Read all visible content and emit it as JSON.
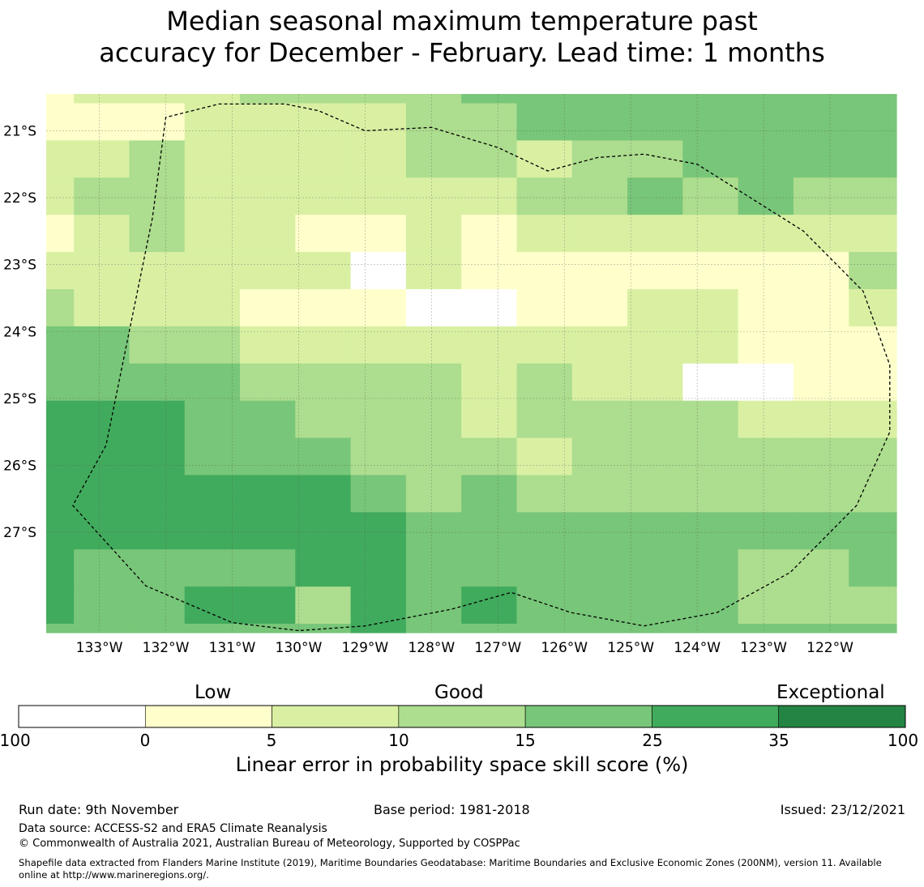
{
  "title_line1": "Median seasonal maximum temperature past",
  "title_line2": "accuracy for December - February. Lead time: 1 months",
  "colors": {
    "bins": [
      "#ffffff",
      "#ffffcc",
      "#d9f0a3",
      "#addd8e",
      "#78c679",
      "#41ab5d",
      "#238443"
    ],
    "outline": "#000000",
    "grid": "#555555"
  },
  "chart_data": {
    "type": "heatmap",
    "title": "Median seasonal maximum temperature past accuracy for December - February. Lead time: 1 months",
    "x_ticks": [
      "133°W",
      "132°W",
      "131°W",
      "130°W",
      "129°W",
      "128°W",
      "127°W",
      "126°W",
      "125°W",
      "124°W",
      "123°W",
      "122°W"
    ],
    "y_ticks": [
      "21°S",
      "22°S",
      "23°S",
      "24°S",
      "25°S",
      "26°S",
      "27°S"
    ],
    "x_tick_values": [
      -133,
      -132,
      -131,
      -130,
      -129,
      -128,
      -127,
      -126,
      -125,
      -124,
      -123,
      -122
    ],
    "y_tick_values": [
      -21,
      -22,
      -23,
      -24,
      -25,
      -26,
      -27
    ],
    "xlim": [
      -133.8,
      -121.0
    ],
    "ylim": [
      -28.5,
      -20.45
    ],
    "cell_deg_lon": 0.8333,
    "cell_deg_lat": 0.5556,
    "grid_origin": {
      "lon": -133.8,
      "lat": -20.45
    },
    "grid_columns": [
      0.5,
      1,
      1,
      1,
      1,
      1,
      1,
      1,
      1,
      1,
      1,
      1,
      1,
      1,
      1,
      1
    ],
    "grid_rows": [
      0.25,
      1,
      1,
      1,
      1,
      1,
      1,
      1,
      1,
      1,
      1,
      1,
      1,
      1,
      1,
      0.3
    ],
    "grid_category_index": [
      [
        1,
        2,
        2,
        2,
        3,
        3,
        3,
        3,
        4,
        4,
        4,
        4,
        4,
        4,
        4,
        4
      ],
      [
        1,
        1,
        1,
        2,
        2,
        2,
        2,
        3,
        3,
        4,
        4,
        4,
        4,
        4,
        4,
        4
      ],
      [
        2,
        2,
        3,
        2,
        2,
        2,
        2,
        3,
        3,
        2,
        3,
        3,
        4,
        4,
        4,
        4
      ],
      [
        2,
        3,
        3,
        2,
        2,
        2,
        2,
        2,
        2,
        3,
        3,
        4,
        3,
        4,
        3,
        3
      ],
      [
        1,
        2,
        3,
        2,
        2,
        1,
        1,
        2,
        1,
        2,
        2,
        2,
        2,
        2,
        2,
        2
      ],
      [
        2,
        2,
        2,
        2,
        2,
        2,
        0,
        2,
        1,
        1,
        1,
        1,
        1,
        1,
        1,
        3
      ],
      [
        3,
        2,
        2,
        2,
        1,
        1,
        1,
        0,
        0,
        1,
        1,
        2,
        2,
        1,
        1,
        2
      ],
      [
        4,
        4,
        3,
        3,
        2,
        2,
        2,
        2,
        2,
        2,
        2,
        2,
        2,
        1,
        1,
        1
      ],
      [
        4,
        4,
        4,
        4,
        3,
        3,
        3,
        3,
        2,
        3,
        2,
        2,
        0,
        0,
        1,
        1
      ],
      [
        5,
        5,
        5,
        4,
        4,
        3,
        3,
        3,
        2,
        3,
        3,
        3,
        3,
        2,
        2,
        2
      ],
      [
        5,
        5,
        5,
        4,
        4,
        4,
        3,
        3,
        3,
        2,
        3,
        3,
        3,
        3,
        3,
        3
      ],
      [
        5,
        5,
        5,
        5,
        5,
        5,
        4,
        3,
        4,
        3,
        3,
        3,
        3,
        3,
        3,
        3
      ],
      [
        5,
        5,
        5,
        5,
        5,
        5,
        5,
        4,
        4,
        4,
        4,
        4,
        4,
        4,
        4,
        4
      ],
      [
        5,
        4,
        4,
        4,
        4,
        5,
        5,
        4,
        4,
        4,
        4,
        4,
        4,
        3,
        3,
        4
      ],
      [
        5,
        4,
        4,
        5,
        5,
        3,
        5,
        4,
        5,
        4,
        4,
        4,
        4,
        3,
        3,
        3
      ],
      [
        4,
        4,
        4,
        4,
        4,
        4,
        5,
        4,
        4,
        4,
        4,
        4,
        4,
        4,
        4,
        4
      ]
    ],
    "outline_lonlat": [
      [
        -130.0,
        -28.47
      ],
      [
        -131.0,
        -28.35
      ],
      [
        -132.3,
        -27.8
      ],
      [
        -133.4,
        -26.6
      ],
      [
        -132.9,
        -25.7
      ],
      [
        -132.2,
        -22.3
      ],
      [
        -132.0,
        -20.8
      ],
      [
        -131.2,
        -20.6
      ],
      [
        -130.2,
        -20.6
      ],
      [
        -129.7,
        -20.7
      ],
      [
        -129.0,
        -21.0
      ],
      [
        -128.0,
        -20.95
      ],
      [
        -127.0,
        -21.25
      ],
      [
        -126.25,
        -21.6
      ],
      [
        -125.5,
        -21.4
      ],
      [
        -124.8,
        -21.35
      ],
      [
        -124.0,
        -21.5
      ],
      [
        -123.2,
        -22.0
      ],
      [
        -122.4,
        -22.5
      ],
      [
        -121.5,
        -23.4
      ],
      [
        -121.1,
        -24.5
      ],
      [
        -121.1,
        -25.5
      ],
      [
        -121.6,
        -26.6
      ],
      [
        -122.6,
        -27.6
      ],
      [
        -123.7,
        -28.2
      ],
      [
        -124.8,
        -28.4
      ],
      [
        -125.9,
        -28.2
      ],
      [
        -126.8,
        -27.9
      ],
      [
        -127.7,
        -28.15
      ],
      [
        -129.0,
        -28.4
      ],
      [
        -130.0,
        -28.47
      ]
    ],
    "colorbar": {
      "boundaries": [
        "-100",
        "0",
        "5",
        "10",
        "15",
        "25",
        "35",
        "100"
      ],
      "category_labels": [
        "Low",
        "Good",
        "Exceptional"
      ],
      "label": "Linear error in probability space skill score (%)"
    }
  },
  "footer": {
    "run_date": "Run date: 9th November",
    "base_period": "Base period: 1981-2018",
    "issued": "Issued: 23/12/2021",
    "data_source": "Data source: ACCESS-S2 and ERA5 Climate Reanalysis",
    "copyright": "© Commonwealth of Australia 2021, Australian Bureau of Meteorology, Supported by COSPPac",
    "shapefile_line1": "Shapefile data extracted from Flanders Marine Institute (2019), Maritime Boundaries Geodatabase: Maritime Boundaries and Exclusive Economic Zones (200NM), version 11. Available",
    "shapefile_line2": "online at http://www.marineregions.org/."
  }
}
